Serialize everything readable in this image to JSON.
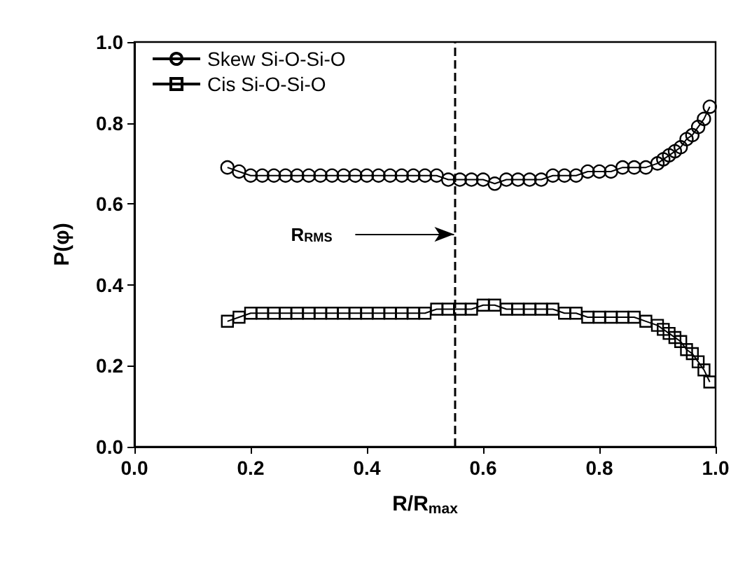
{
  "chart_data": {
    "type": "line",
    "xlabel": "R/R$_{max}$",
    "ylabel": "P(φ)",
    "x": [
      0.16,
      0.18,
      0.2,
      0.22,
      0.24,
      0.26,
      0.28,
      0.3,
      0.32,
      0.34,
      0.36,
      0.38,
      0.4,
      0.42,
      0.44,
      0.46,
      0.48,
      0.5,
      0.52,
      0.54,
      0.56,
      0.58,
      0.6,
      0.62,
      0.64,
      0.66,
      0.68,
      0.7,
      0.72,
      0.74,
      0.76,
      0.78,
      0.8,
      0.82,
      0.84,
      0.86,
      0.88,
      0.9,
      0.91,
      0.92,
      0.93,
      0.94,
      0.95,
      0.96,
      0.97,
      0.98,
      0.99
    ],
    "series": [
      {
        "name": "Skew Si-O-Si-O",
        "color": "#000000",
        "marker": "circle",
        "values": [
          0.69,
          0.68,
          0.67,
          0.67,
          0.67,
          0.67,
          0.67,
          0.67,
          0.67,
          0.67,
          0.67,
          0.67,
          0.67,
          0.67,
          0.67,
          0.67,
          0.67,
          0.67,
          0.67,
          0.66,
          0.66,
          0.66,
          0.66,
          0.65,
          0.66,
          0.66,
          0.66,
          0.66,
          0.67,
          0.67,
          0.67,
          0.68,
          0.68,
          0.68,
          0.69,
          0.69,
          0.69,
          0.7,
          0.71,
          0.72,
          0.73,
          0.74,
          0.76,
          0.77,
          0.79,
          0.81,
          0.84
        ]
      },
      {
        "name": "Cis Si-O-Si-O",
        "color": "#000000",
        "marker": "square",
        "values": [
          0.31,
          0.32,
          0.33,
          0.33,
          0.33,
          0.33,
          0.33,
          0.33,
          0.33,
          0.33,
          0.33,
          0.33,
          0.33,
          0.33,
          0.33,
          0.33,
          0.33,
          0.33,
          0.34,
          0.34,
          0.34,
          0.34,
          0.35,
          0.35,
          0.34,
          0.34,
          0.34,
          0.34,
          0.34,
          0.33,
          0.33,
          0.32,
          0.32,
          0.32,
          0.32,
          0.32,
          0.31,
          0.3,
          0.29,
          0.28,
          0.27,
          0.26,
          0.24,
          0.23,
          0.21,
          0.19,
          0.16
        ]
      }
    ],
    "xlim": [
      0,
      1
    ],
    "ylim": [
      0,
      1
    ],
    "xticks": [
      {
        "value": 0,
        "label": "0.0"
      },
      {
        "value": 0.2,
        "label": "0.2"
      },
      {
        "value": 0.4,
        "label": "0.4"
      },
      {
        "value": 0.6,
        "label": "0.6"
      },
      {
        "value": 0.8,
        "label": "0.8"
      },
      {
        "value": 1,
        "label": "1.0"
      }
    ],
    "yticks": [
      {
        "value": 0,
        "label": "0.0"
      },
      {
        "value": 0.2,
        "label": "0.2"
      },
      {
        "value": 0.4,
        "label": "0.4"
      },
      {
        "value": 0.6,
        "label": "0.6"
      },
      {
        "value": 0.8,
        "label": "0.8"
      },
      {
        "value": 1,
        "label": "1.0"
      }
    ],
    "ref_lines": [
      {
        "axis": "x",
        "value": 0.55,
        "line_style": "dashed",
        "color": "#000000"
      }
    ],
    "annotations": [
      {
        "text": "R$_{RMS}$",
        "x": 0.55,
        "y": 0.525
      }
    ],
    "grid": false,
    "legend": "top left",
    "line_style": "solid"
  }
}
